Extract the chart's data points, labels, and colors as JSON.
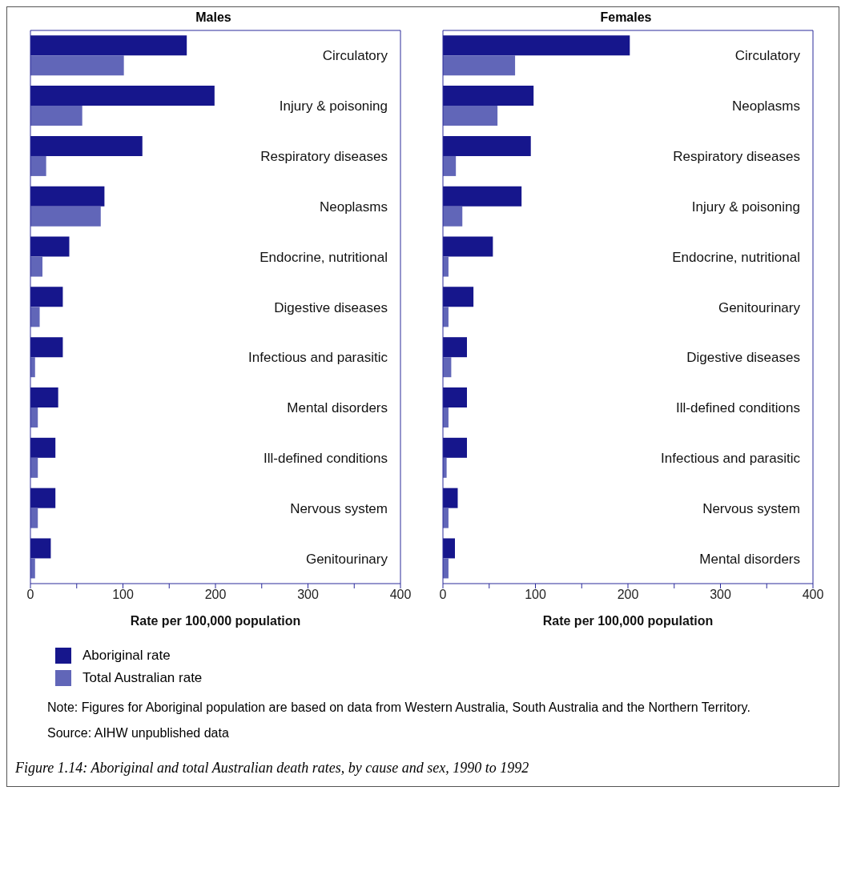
{
  "chart_data": [
    {
      "type": "bar",
      "orientation": "horizontal",
      "title": "Males",
      "xlabel": "Rate per 100,000 population",
      "categories": [
        "Circulatory",
        "Injury & poisoning",
        "Respiratory diseases",
        "Neoplasms",
        "Endocrine, nutritional",
        "Digestive diseases",
        "Infectious and parasitic",
        "Mental disorders",
        "Ill-defined conditions",
        "Nervous system",
        "Genitourinary"
      ],
      "series": [
        {
          "name": "Aboriginal rate",
          "color": "#16168c",
          "values": [
            169,
            199,
            121,
            80,
            42,
            35,
            35,
            30,
            27,
            27,
            22
          ]
        },
        {
          "name": "Total Australian rate",
          "color": "#6166b8",
          "values": [
            101,
            56,
            17,
            76,
            13,
            10,
            5,
            8,
            8,
            8,
            5
          ]
        }
      ],
      "xlim": [
        0,
        400
      ],
      "xticks": [
        0,
        {
          "value": 50,
          "label": null
        },
        100,
        {
          "value": 150,
          "label": null
        },
        200,
        {
          "value": 250,
          "label": null
        },
        300,
        {
          "value": 350,
          "label": null
        },
        400
      ],
      "legend": "bottom",
      "annotations": [
        "Note: Figures for Aboriginal population are based on data from Western Australia, South Australia and the Northern Territory.",
        "Source: AIHW unpublished data",
        "Figure 1.14: Aboriginal and total Australian death rates, by cause and sex, 1990 to 1992"
      ]
    },
    {
      "type": "bar",
      "orientation": "horizontal",
      "title": "Females",
      "xlabel": "Rate per 100,000 population",
      "categories": [
        "Circulatory",
        "Neoplasms",
        "Respiratory diseases",
        "Injury & poisoning",
        "Endocrine, nutritional",
        "Genitourinary",
        "Digestive diseases",
        "Ill-defined conditions",
        "Infectious and parasitic",
        "Nervous system",
        "Mental disorders"
      ],
      "series": [
        {
          "color": "#16168c",
          "values": [
            202,
            98,
            95,
            85,
            54,
            33,
            26,
            26,
            26,
            16,
            13
          ]
        },
        {
          "color": "#6166b8",
          "values": [
            78,
            59,
            14,
            21,
            6,
            6,
            9,
            6,
            4,
            6,
            6
          ]
        }
      ],
      "xlim": [
        0,
        400
      ],
      "xticks": [
        0,
        {
          "value": 50,
          "label": null
        },
        100,
        {
          "value": 150,
          "label": null
        },
        200,
        {
          "value": 250,
          "label": null
        },
        300,
        {
          "value": 350,
          "label": null
        },
        400
      ]
    }
  ]
}
